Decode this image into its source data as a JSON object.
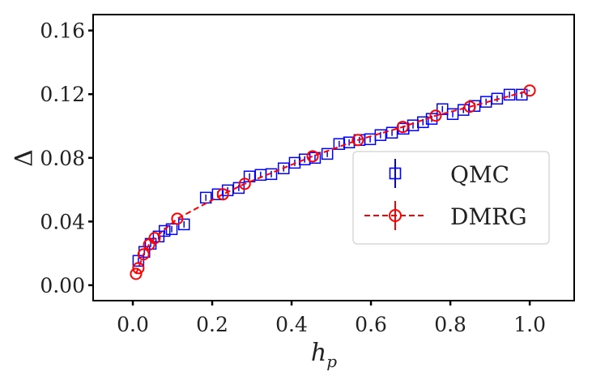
{
  "chart_data": {
    "type": "scatter",
    "title": "",
    "xlabel": "h",
    "xlabel_subscript": "p",
    "ylabel": "Δ",
    "xlim": [
      -0.1,
      1.112
    ],
    "ylim": [
      -0.0097,
      0.17
    ],
    "xticks": [
      0.0,
      0.2,
      0.4,
      0.6,
      0.8,
      1.0
    ],
    "xtick_labels": [
      "0.0",
      "0.2",
      "0.4",
      "0.6",
      "0.8",
      "1.0"
    ],
    "yticks": [
      0.0,
      0.04,
      0.08,
      0.12,
      0.16
    ],
    "ytick_labels": [
      "0.00",
      "0.04",
      "0.08",
      "0.12",
      "0.16"
    ],
    "grid": false,
    "legend": {
      "position": "center-right",
      "entries": [
        "QMC",
        "DMRG"
      ]
    },
    "series": [
      {
        "name": "QMC",
        "marker": "square",
        "line": "none",
        "errorbars": true,
        "color": "#0000ff",
        "x": [
          0.014,
          0.029,
          0.045,
          0.065,
          0.08,
          0.098,
          0.129,
          0.184,
          0.214,
          0.239,
          0.267,
          0.294,
          0.322,
          0.349,
          0.38,
          0.408,
          0.433,
          0.459,
          0.49,
          0.52,
          0.545,
          0.571,
          0.598,
          0.624,
          0.653,
          0.682,
          0.706,
          0.731,
          0.753,
          0.78,
          0.806,
          0.833,
          0.861,
          0.89,
          0.918,
          0.949,
          0.98
        ],
        "y": [
          0.0153,
          0.0209,
          0.026,
          0.0306,
          0.0341,
          0.0352,
          0.0382,
          0.055,
          0.0571,
          0.0596,
          0.0611,
          0.0683,
          0.0693,
          0.0698,
          0.0734,
          0.0769,
          0.079,
          0.08,
          0.0825,
          0.0887,
          0.0897,
          0.0912,
          0.0917,
          0.0943,
          0.0958,
          0.0983,
          0.1004,
          0.1024,
          0.1045,
          0.1106,
          0.1075,
          0.1101,
          0.1126,
          0.1152,
          0.1172,
          0.1197,
          0.1197
        ],
        "yerr": 0.002
      },
      {
        "name": "DMRG",
        "marker": "circle",
        "line": "dashed",
        "errorbars": false,
        "color": "#ff0000",
        "x": [
          0.008,
          0.014,
          0.027,
          0.041,
          0.055,
          0.112,
          0.227,
          0.282,
          0.453,
          0.567,
          0.68,
          0.763,
          0.849,
          1.0
        ],
        "y": [
          0.0071,
          0.0107,
          0.0194,
          0.0255,
          0.0296,
          0.0418,
          0.0571,
          0.0637,
          0.081,
          0.0912,
          0.0994,
          0.1065,
          0.1121,
          0.1223
        ]
      }
    ]
  }
}
